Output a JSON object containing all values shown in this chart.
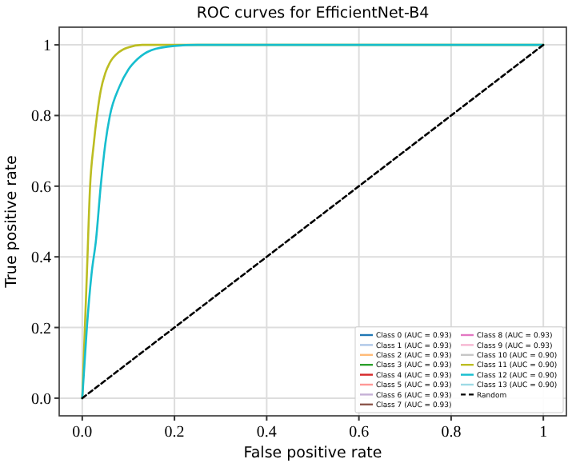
{
  "chart_data": {
    "type": "line",
    "title": "ROC curves for EfficientNet-B4",
    "xlabel": "False positive rate",
    "ylabel": "True positive rate",
    "xlim": [
      -0.05,
      1.05
    ],
    "ylim": [
      -0.05,
      1.05
    ],
    "xticks": [
      {
        "value": 0,
        "label": "0.0"
      },
      {
        "value": 0.2,
        "label": "0.2"
      },
      {
        "value": 0.4,
        "label": "0.4"
      },
      {
        "value": 0.6,
        "label": "0.6"
      },
      {
        "value": 0.8,
        "label": "0.8"
      },
      1
    ],
    "yticks": [
      {
        "value": 0,
        "label": "0.0"
      },
      {
        "value": 0.2,
        "label": "0.2"
      },
      {
        "value": 0.4,
        "label": "0.4"
      },
      {
        "value": 0.6,
        "label": "0.6"
      },
      {
        "value": 0.8,
        "label": "0.8"
      },
      1
    ],
    "grid": true,
    "legend": "bottom right",
    "series": [
      {
        "name": "Class 0 (AUC = 0.93)",
        "color": "#1f77b4"
      },
      {
        "name": "Class 1 (AUC = 0.93)",
        "color": "#aec7e8"
      },
      {
        "name": "Class 2 (AUC = 0.93)",
        "color": "#ffbb78"
      },
      {
        "name": "Class 3 (AUC = 0.93)",
        "color": "#2ca02c"
      },
      {
        "name": "Class 4 (AUC = 0.93)",
        "color": "#d62728"
      },
      {
        "name": "Class 5 (AUC = 0.93)",
        "color": "#ff9896"
      },
      {
        "name": "Class 6 (AUC = 0.93)",
        "color": "#c5b0d5"
      },
      {
        "name": "Class 7 (AUC = 0.93)",
        "color": "#8c564b"
      },
      {
        "name": "Class 8 (AUC = 0.93)",
        "color": "#e377c2"
      },
      {
        "name": "Class 9 (AUC = 0.93)",
        "color": "#f7b6d2"
      },
      {
        "name": "Class 10 (AUC = 0.90)",
        "color": "#c7c7c7"
      },
      {
        "name": "Class 11 (AUC = 0.90)",
        "color": "#bcbd22",
        "x": [
          0,
          0.01,
          0.017,
          0.025,
          0.032,
          0.04,
          0.05,
          0.06,
          0.08,
          0.1,
          0.13,
          0.2,
          1
        ],
        "values": [
          0,
          0.35,
          0.6,
          0.72,
          0.8,
          0.87,
          0.92,
          0.95,
          0.98,
          0.993,
          1,
          1,
          1
        ]
      },
      {
        "name": "Class 12 (AUC = 0.90)",
        "color": "#17becf",
        "x": [
          0,
          0.01,
          0.02,
          0.03,
          0.04,
          0.05,
          0.06,
          0.08,
          0.1,
          0.12,
          0.15,
          0.2,
          0.25,
          1
        ],
        "values": [
          0,
          0.2,
          0.35,
          0.45,
          0.6,
          0.72,
          0.8,
          0.88,
          0.93,
          0.96,
          0.985,
          0.997,
          1,
          1
        ]
      },
      {
        "name": "Class 13 (AUC = 0.90)",
        "color": "#9edae5"
      },
      {
        "name": "Random",
        "color": "#000000",
        "line_style": "dashed",
        "x": [
          0,
          1
        ],
        "values": [
          0,
          1
        ]
      }
    ]
  }
}
